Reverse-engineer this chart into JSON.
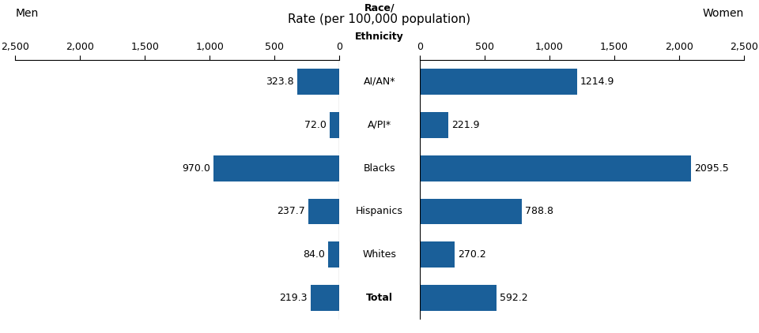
{
  "categories": [
    "AI/AN*",
    "A/PI*",
    "Blacks",
    "Hispanics",
    "Whites",
    "Total"
  ],
  "men_values": [
    323.8,
    72.0,
    970.0,
    237.7,
    84.0,
    219.3
  ],
  "women_values": [
    1214.9,
    221.9,
    2095.5,
    788.8,
    270.2,
    592.2
  ],
  "bar_color": "#1a5f99",
  "xlim": 2500,
  "xticks": [
    0,
    500,
    1000,
    1500,
    2000,
    2500
  ],
  "xtick_labels": [
    "0",
    "500",
    "1,000",
    "1,500",
    "2,000",
    "2,500"
  ],
  "xlabel_center": "Rate (per 100,000 population)",
  "label_men": "Men",
  "label_women": "Women",
  "center_label_line1": "Race/",
  "center_label_line2": "Ethnicity",
  "total_bold_index": 5,
  "fig_width": 9.6,
  "fig_height": 4.22,
  "dpi": 100
}
